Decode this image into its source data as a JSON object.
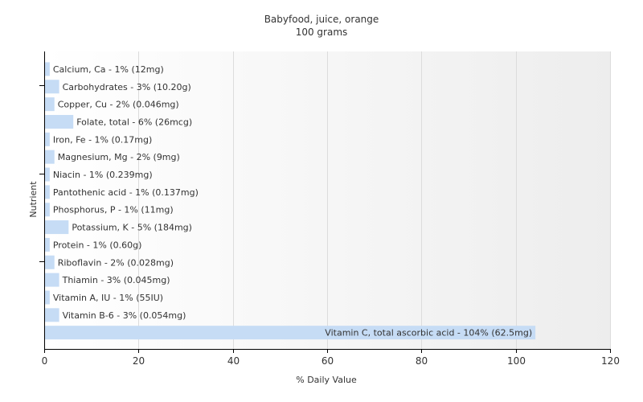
{
  "chart_data": {
    "type": "bar",
    "orientation": "horizontal",
    "title": "Babyfood, juice, orange",
    "subtitle": "100 grams",
    "xlabel": "% Daily Value",
    "ylabel": "Nutrient",
    "xlim": [
      0,
      120
    ],
    "xticks": [
      0,
      20,
      40,
      60,
      80,
      100,
      120
    ],
    "grid": true,
    "legend": "none",
    "colors": {
      "bar": "#c6dcf5",
      "plot_background_start": "#ffffff",
      "plot_background_end": "#ededed",
      "grid": "#dcdcdc",
      "axis": "#000000",
      "text": "#333333"
    },
    "categories": [
      "Calcium, Ca",
      "Carbohydrates",
      "Copper, Cu",
      "Folate, total",
      "Iron, Fe",
      "Magnesium, Mg",
      "Niacin",
      "Pantothenic acid",
      "Phosphorus, P",
      "Potassium, K",
      "Protein",
      "Riboflavin",
      "Thiamin",
      "Vitamin A, IU",
      "Vitamin B-6",
      "Vitamin C, total ascorbic acid"
    ],
    "values": [
      1,
      3,
      2,
      6,
      1,
      2,
      1,
      1,
      1,
      5,
      1,
      2,
      3,
      1,
      3,
      104
    ],
    "labels": [
      "Calcium, Ca - 1% (12mg)",
      "Carbohydrates - 3% (10.20g)",
      "Copper, Cu - 2% (0.046mg)",
      "Folate, total - 6% (26mcg)",
      "Iron, Fe - 1% (0.17mg)",
      "Magnesium, Mg - 2% (9mg)",
      "Niacin - 1% (0.239mg)",
      "Pantothenic acid - 1% (0.137mg)",
      "Phosphorus, P - 1% (11mg)",
      "Potassium, K - 5% (184mg)",
      "Protein - 1% (0.60g)",
      "Riboflavin - 2% (0.028mg)",
      "Thiamin - 3% (0.045mg)",
      "Vitamin A, IU - 1% (55IU)",
      "Vitamin B-6 - 3% (0.054mg)",
      "Vitamin C, total ascorbic acid - 104% (62.5mg)"
    ]
  }
}
